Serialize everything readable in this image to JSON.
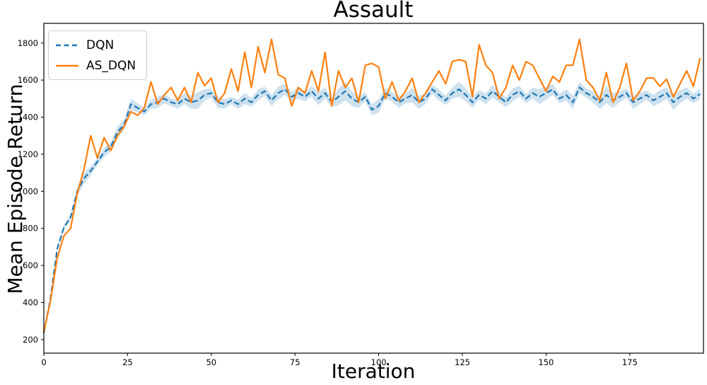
{
  "title": "Assault",
  "chart_data": {
    "type": "line",
    "title": "Assault",
    "xlabel": "Iteration",
    "ylabel": "Mean Episode Return",
    "xlim": [
      0,
      197
    ],
    "ylim": [
      127,
      1906
    ],
    "xticks": [
      0,
      25,
      50,
      75,
      100,
      125,
      150,
      175
    ],
    "yticks": [
      200,
      400,
      600,
      800,
      1000,
      1200,
      1400,
      1600,
      1800
    ],
    "grid": false,
    "legend_position": "upper-left",
    "x": [
      0,
      2,
      4,
      6,
      8,
      10,
      12,
      14,
      16,
      18,
      20,
      22,
      24,
      26,
      28,
      30,
      32,
      34,
      36,
      38,
      40,
      42,
      44,
      46,
      48,
      50,
      52,
      54,
      56,
      58,
      60,
      62,
      64,
      66,
      68,
      70,
      72,
      74,
      76,
      78,
      80,
      82,
      84,
      86,
      88,
      90,
      92,
      94,
      96,
      98,
      100,
      102,
      104,
      106,
      108,
      110,
      112,
      114,
      116,
      118,
      120,
      122,
      124,
      126,
      128,
      130,
      132,
      134,
      136,
      138,
      140,
      142,
      144,
      146,
      148,
      150,
      152,
      154,
      156,
      158,
      160,
      162,
      164,
      166,
      168,
      170,
      172,
      174,
      176,
      178,
      180,
      182,
      184,
      186,
      188,
      190,
      192,
      194,
      196
    ],
    "series": [
      {
        "name": "DQN",
        "color": "#1f77b4",
        "line_style": "dashed",
        "band_color_rgba": "rgba(31,119,180,0.22)",
        "values": [
          235,
          425,
          690,
          805,
          860,
          1000,
          1070,
          1110,
          1160,
          1210,
          1240,
          1320,
          1360,
          1470,
          1450,
          1430,
          1470,
          1480,
          1500,
          1480,
          1470,
          1500,
          1480,
          1490,
          1520,
          1530,
          1480,
          1470,
          1490,
          1470,
          1500,
          1480,
          1520,
          1540,
          1490,
          1530,
          1550,
          1510,
          1530,
          1510,
          1540,
          1500,
          1530,
          1480,
          1510,
          1540,
          1500,
          1480,
          1510,
          1440,
          1460,
          1530,
          1510,
          1480,
          1500,
          1520,
          1480,
          1500,
          1550,
          1520,
          1490,
          1530,
          1550,
          1520,
          1480,
          1520,
          1500,
          1540,
          1510,
          1480,
          1520,
          1540,
          1500,
          1530,
          1510,
          1530,
          1550,
          1500,
          1520,
          1480,
          1560,
          1530,
          1510,
          1480,
          1520,
          1490,
          1510,
          1530,
          1480,
          1500,
          1520,
          1490,
          1510,
          1530,
          1480,
          1510,
          1530,
          1500,
          1525
        ],
        "band_halfwidth": [
          5,
          10,
          15,
          15,
          15,
          25,
          30,
          25,
          20,
          25,
          25,
          30,
          25,
          30,
          25,
          20,
          25,
          30,
          25,
          20,
          25,
          30,
          35,
          45,
          30,
          25,
          30,
          25,
          20,
          25,
          30,
          25,
          30,
          25,
          30,
          35,
          30,
          25,
          30,
          25,
          30,
          35,
          30,
          25,
          45,
          50,
          40,
          30,
          25,
          30,
          35,
          30,
          25,
          30,
          25,
          40,
          35,
          30,
          25,
          30,
          25,
          30,
          40,
          35,
          30,
          25,
          30,
          35,
          30,
          25,
          35,
          30,
          25,
          30,
          40,
          35,
          30,
          25,
          30,
          35,
          30,
          25,
          30,
          35,
          45,
          40,
          30,
          25,
          35,
          30,
          25,
          30,
          35,
          30,
          40,
          35,
          30,
          25,
          30
        ]
      },
      {
        "name": "AS_DQN",
        "color": "#ff7f0e",
        "line_style": "solid",
        "values": [
          240,
          410,
          640,
          760,
          800,
          990,
          1120,
          1300,
          1180,
          1290,
          1220,
          1300,
          1350,
          1430,
          1410,
          1450,
          1590,
          1470,
          1520,
          1560,
          1490,
          1560,
          1480,
          1640,
          1570,
          1610,
          1480,
          1530,
          1660,
          1540,
          1750,
          1560,
          1780,
          1640,
          1820,
          1630,
          1610,
          1460,
          1560,
          1530,
          1650,
          1540,
          1750,
          1460,
          1650,
          1560,
          1610,
          1480,
          1680,
          1690,
          1670,
          1500,
          1590,
          1490,
          1540,
          1610,
          1480,
          1530,
          1590,
          1650,
          1580,
          1700,
          1710,
          1700,
          1510,
          1790,
          1680,
          1640,
          1500,
          1560,
          1680,
          1600,
          1700,
          1680,
          1610,
          1540,
          1620,
          1590,
          1680,
          1680,
          1820,
          1600,
          1560,
          1490,
          1640,
          1480,
          1560,
          1690,
          1490,
          1540,
          1610,
          1612,
          1566,
          1605,
          1509,
          1580,
          1650,
          1566,
          1719
        ]
      }
    ]
  }
}
